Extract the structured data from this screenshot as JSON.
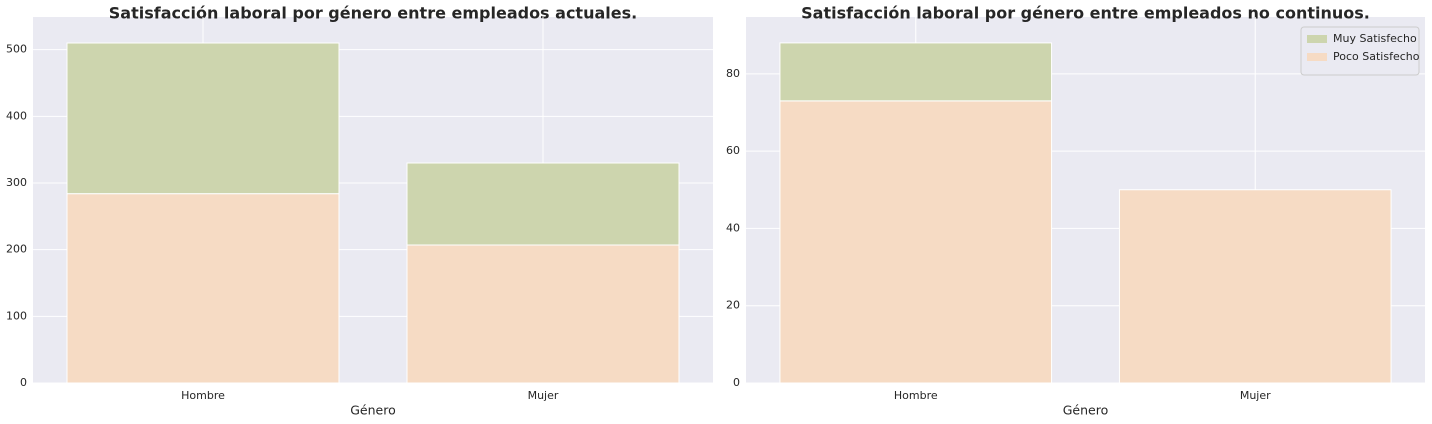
{
  "chart_data": [
    {
      "type": "bar",
      "stacked": true,
      "title": "Satisfacción laboral por género entre empleados actuales.",
      "x_label": "Género",
      "categories": [
        "Hombre",
        "Mujer"
      ],
      "series": [
        {
          "name": "Muy Satisfecho",
          "color": "#cdd5ae",
          "values": [
            226,
            123
          ]
        },
        {
          "name": "Poco Satisfecho",
          "color": "#f6dbc4",
          "values": [
            284,
            207
          ]
        }
      ],
      "ylim": [
        0,
        549
      ],
      "yticks": [
        0,
        100,
        200,
        300,
        400,
        500
      ],
      "grid": true
    },
    {
      "type": "bar",
      "stacked": true,
      "title": "Satisfacción laboral por género entre empleados no continuos.",
      "x_label": "Género",
      "categories": [
        "Hombre",
        "Mujer"
      ],
      "series": [
        {
          "name": "Muy Satisfecho",
          "color": "#cdd5ae",
          "values": [
            15,
            0
          ]
        },
        {
          "name": "Poco Satisfecho",
          "color": "#f6dbc4",
          "values": [
            73,
            50
          ]
        }
      ],
      "ylim": [
        0,
        94.7
      ],
      "yticks": [
        0,
        20,
        40,
        60,
        80
      ],
      "grid": true,
      "legend": "upper right"
    }
  ]
}
